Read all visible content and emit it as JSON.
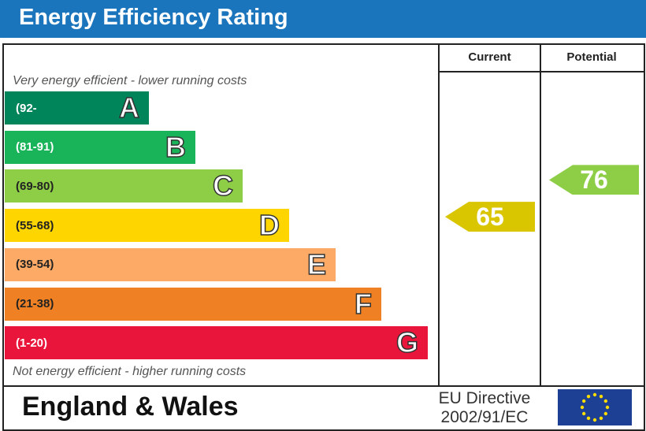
{
  "header": {
    "title": "Energy Efficiency Rating"
  },
  "columns": {
    "current": "Current",
    "potential": "Potential"
  },
  "notes": {
    "top": "Very energy efficient - lower running costs",
    "bottom": "Not energy efficient - higher running costs"
  },
  "footer": {
    "region": "England & Wales",
    "directive_line1": "EU Directive",
    "directive_line2": "2002/91/EC"
  },
  "chart_data": {
    "type": "bar",
    "title": "Energy Efficiency Rating",
    "categories": [
      "A",
      "B",
      "C",
      "D",
      "E",
      "F",
      "G"
    ],
    "ranges": [
      "(92-",
      "(81-91)",
      "(69-80)",
      "(55-68)",
      "(39-54)",
      "(21-38)",
      "(1-20)"
    ],
    "colors": [
      "#00855a",
      "#19b459",
      "#8dce46",
      "#ffd500",
      "#fcaa65",
      "#ef8023",
      "#e9153b"
    ],
    "current": {
      "value": 65,
      "label": "65",
      "band": "D",
      "color": "#d9c600"
    },
    "potential": {
      "value": 76,
      "label": "76",
      "band": "C",
      "color": "#8dce46"
    }
  }
}
